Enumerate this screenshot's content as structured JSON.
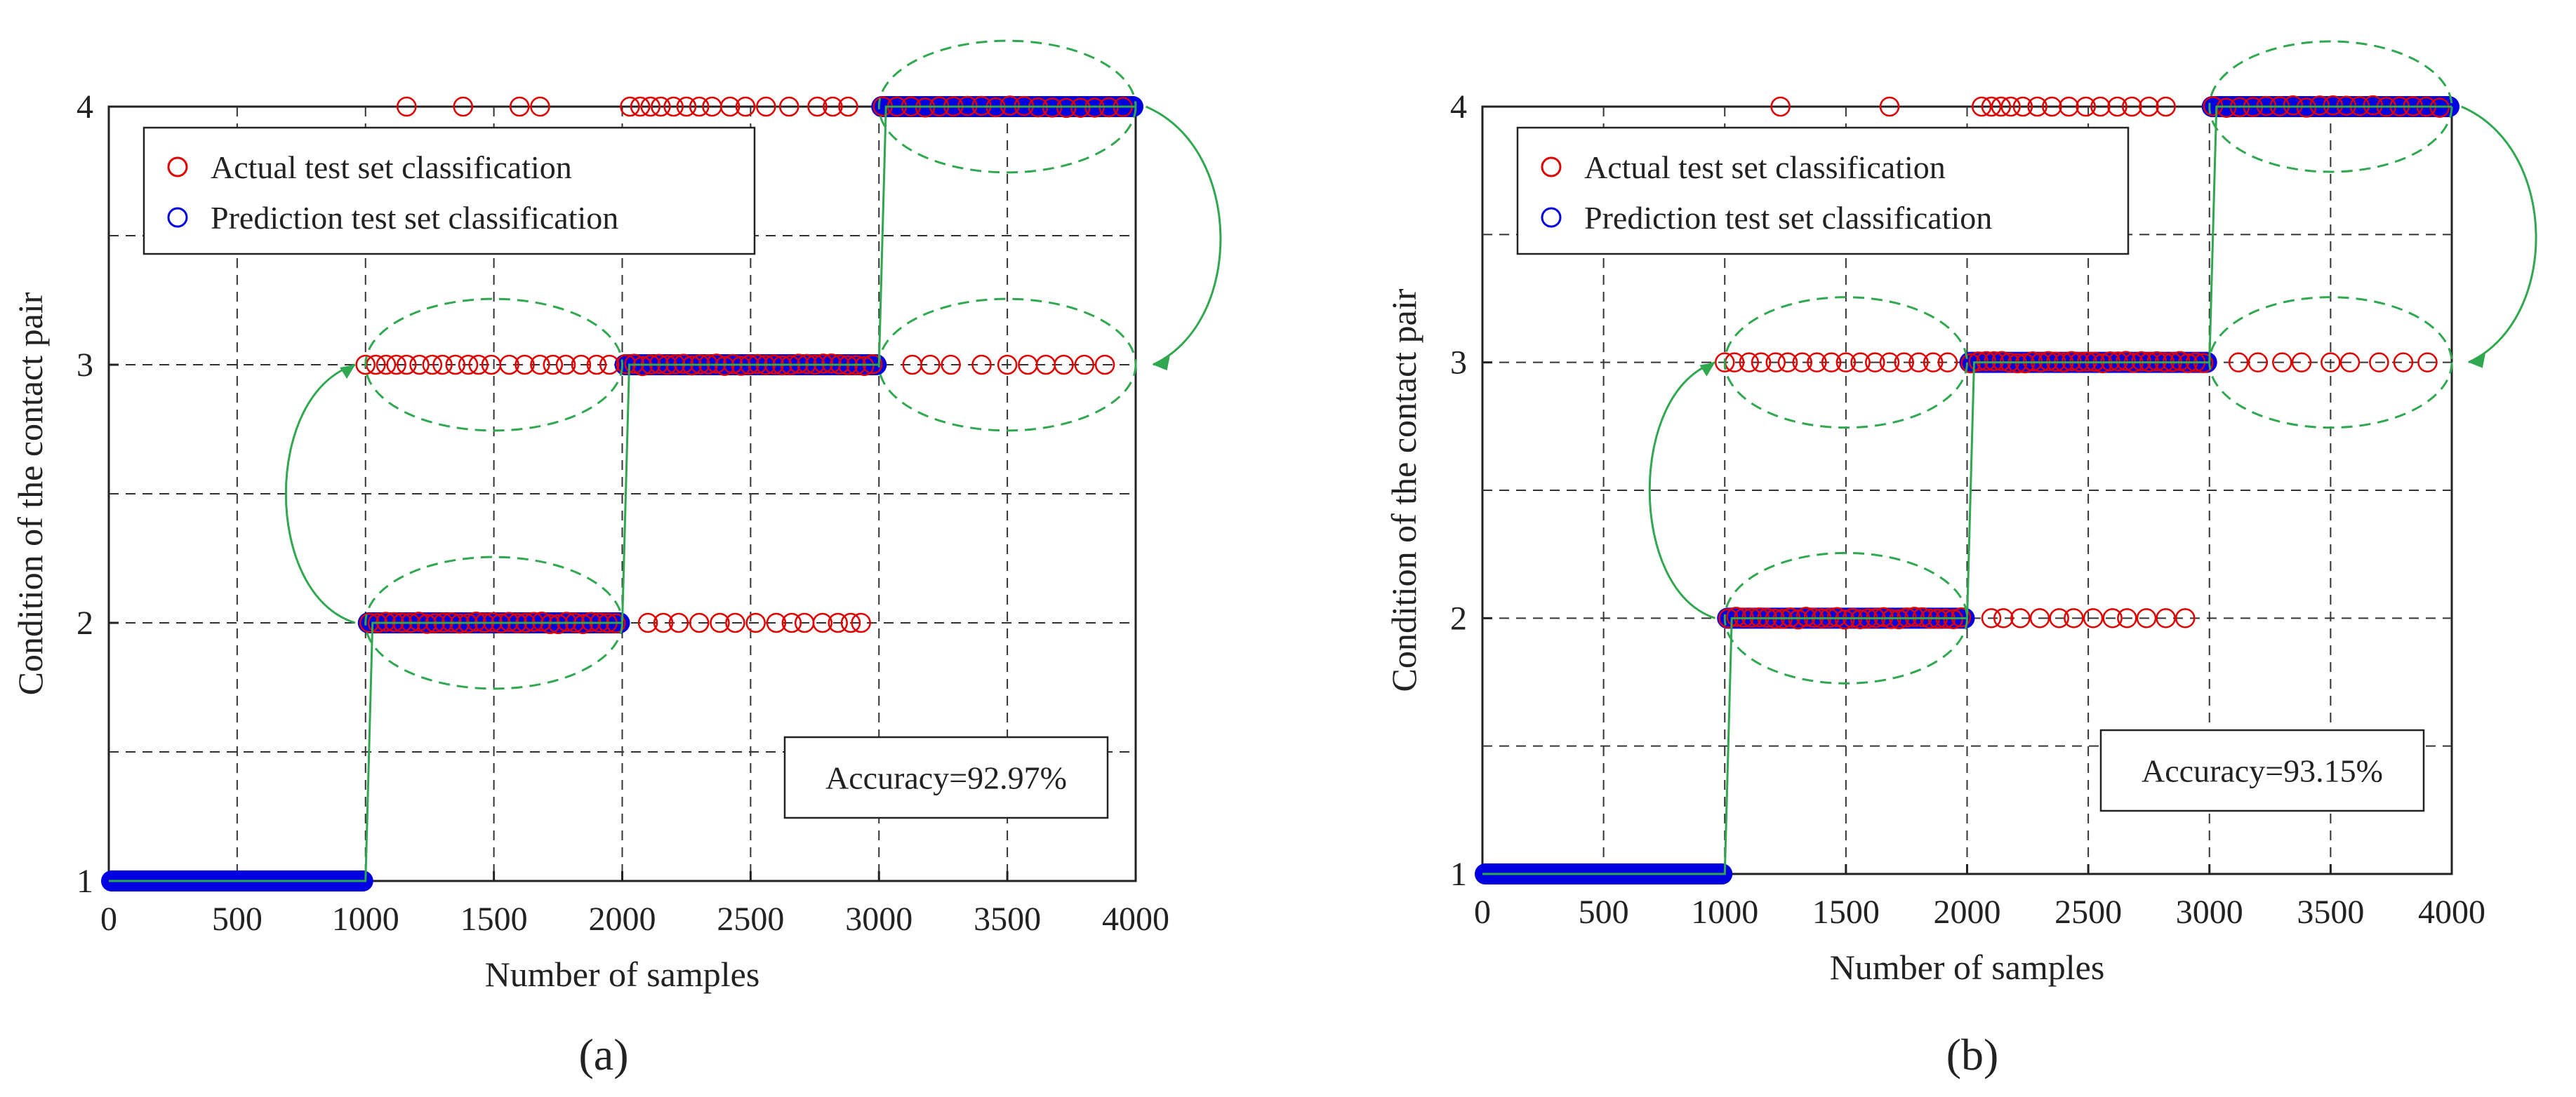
{
  "figure": {
    "panels": [
      "(a)",
      "(b)"
    ]
  },
  "chart_data": [
    {
      "type": "scatter",
      "panel_label": "(a)",
      "title": "",
      "xlabel": "Number of samples",
      "ylabel": "Condition of the contact pair",
      "xlim": [
        0,
        4000
      ],
      "ylim": [
        1,
        4
      ],
      "xticks": [
        "0",
        "500",
        "1000",
        "1500",
        "2000",
        "2500",
        "3000",
        "3500",
        "4000"
      ],
      "yticks": [
        "1",
        "2",
        "3",
        "4"
      ],
      "grid": true,
      "legend_position": "top-left",
      "accuracy_text": "Accuracy=92.97%",
      "series": [
        {
          "name": "Actual test set classification",
          "marker": "hollow-circle",
          "color": "#e00000",
          "points": [
            {
              "segment": [
                0,
                1000
              ],
              "value": 1
            },
            {
              "segment": [
                1000,
                2000
              ],
              "value": 2
            },
            {
              "segment": [
                2000,
                3000
              ],
              "value": 3
            },
            {
              "segment": [
                3000,
                4000
              ],
              "value": 4
            }
          ],
          "misclassified": [
            {
              "value": 3,
              "x": [
                1000,
                1040,
                1080,
                1120,
                1160,
                1210,
                1260,
                1300,
                1350,
                1400,
                1440,
                1490,
                1560,
                1620,
                1680,
                1730,
                1780,
                1840,
                1900,
                1950
              ]
            },
            {
              "value": 4,
              "x": [
                1160,
                1380,
                1600,
                1680
              ]
            },
            {
              "value": 4,
              "x": [
                2030,
                2070,
                2110,
                2150,
                2200,
                2250,
                2300,
                2350,
                2420,
                2480,
                2560,
                2650,
                2760,
                2820,
                2880
              ]
            },
            {
              "value": 2,
              "x": [
                2100,
                2160,
                2220,
                2300,
                2380,
                2440,
                2520,
                2600,
                2660,
                2710,
                2780,
                2840,
                2890,
                2930
              ]
            },
            {
              "value": 3,
              "x": [
                3130,
                3200,
                3280,
                3400,
                3500,
                3580,
                3650,
                3720,
                3800,
                3880
              ]
            }
          ]
        },
        {
          "name": "Prediction test set classification",
          "marker": "hollow-circle",
          "color": "#0000e0",
          "points": [
            {
              "segment": [
                0,
                1000
              ],
              "value": 1
            },
            {
              "segment": [
                1000,
                2000
              ],
              "value": 2
            },
            {
              "segment": [
                2000,
                3000
              ],
              "value": 3
            },
            {
              "segment": [
                3000,
                4000
              ],
              "value": 4
            }
          ]
        }
      ]
    },
    {
      "type": "scatter",
      "panel_label": "(b)",
      "title": "",
      "xlabel": "Number of samples",
      "ylabel": "Condition of the contact pair",
      "xlim": [
        0,
        4000
      ],
      "ylim": [
        1,
        4
      ],
      "xticks": [
        "0",
        "500",
        "1000",
        "1500",
        "2000",
        "2500",
        "3000",
        "3500",
        "4000"
      ],
      "yticks": [
        "1",
        "2",
        "3",
        "4"
      ],
      "grid": true,
      "legend_position": "top-left",
      "accuracy_text": "Accuracy=93.15%",
      "series": [
        {
          "name": "Actual test set classification",
          "marker": "hollow-circle",
          "color": "#e00000",
          "points": [
            {
              "segment": [
                0,
                1000
              ],
              "value": 1
            },
            {
              "segment": [
                1000,
                2000
              ],
              "value": 2
            },
            {
              "segment": [
                2000,
                3000
              ],
              "value": 3
            },
            {
              "segment": [
                3000,
                4000
              ],
              "value": 4
            }
          ],
          "misclassified": [
            {
              "value": 3,
              "x": [
                1000,
                1040,
                1100,
                1150,
                1210,
                1260,
                1320,
                1380,
                1440,
                1500,
                1560,
                1620,
                1680,
                1740,
                1800,
                1860,
                1920
              ]
            },
            {
              "value": 4,
              "x": [
                1230,
                1680
              ]
            },
            {
              "value": 4,
              "x": [
                2060,
                2100,
                2140,
                2180,
                2230,
                2290,
                2350,
                2420,
                2490,
                2550,
                2620,
                2680,
                2750,
                2820
              ]
            },
            {
              "value": 2,
              "x": [
                2100,
                2150,
                2220,
                2300,
                2380,
                2440,
                2520,
                2600,
                2660,
                2740,
                2820,
                2900
              ]
            },
            {
              "value": 3,
              "x": [
                3120,
                3200,
                3300,
                3380,
                3500,
                3580,
                3700,
                3800,
                3900
              ]
            }
          ]
        },
        {
          "name": "Prediction test set classification",
          "marker": "hollow-circle",
          "color": "#0000e0",
          "points": [
            {
              "segment": [
                0,
                1000
              ],
              "value": 1
            },
            {
              "segment": [
                1000,
                2000
              ],
              "value": 2
            },
            {
              "segment": [
                2000,
                3000
              ],
              "value": 3
            },
            {
              "segment": [
                3000,
                4000
              ],
              "value": 4
            }
          ]
        }
      ]
    }
  ]
}
